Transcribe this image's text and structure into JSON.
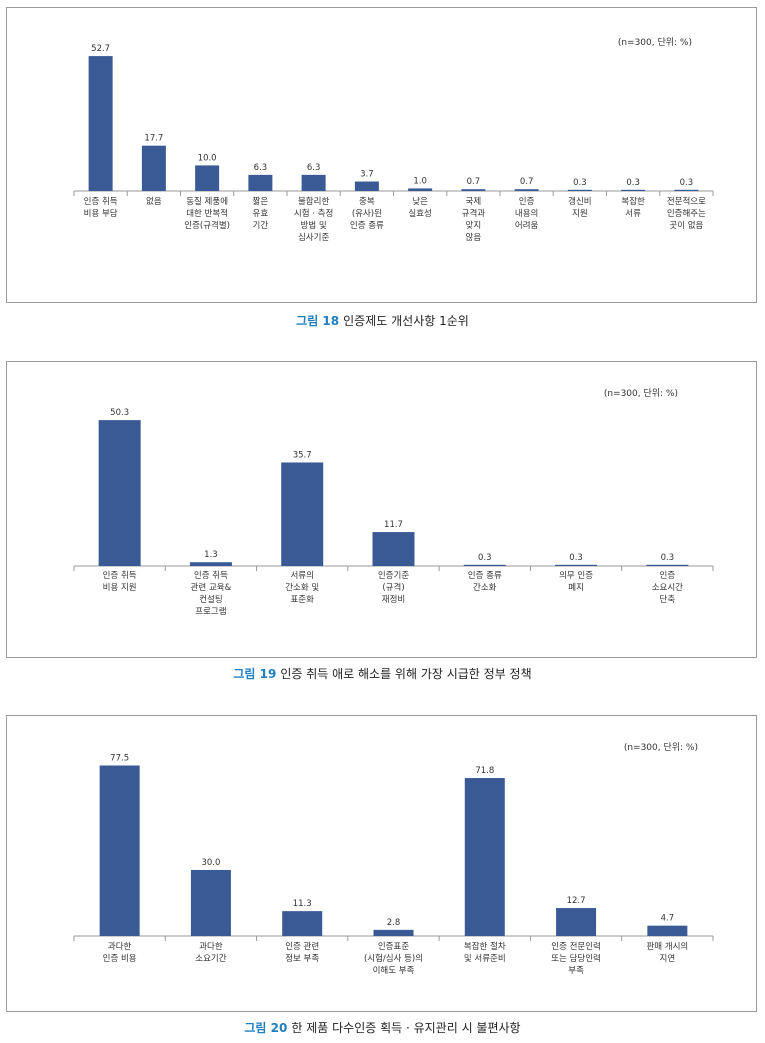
{
  "accent_color": "#1f7fc0",
  "bar_color": "#3a5a96",
  "chart_data": [
    {
      "type": "bar",
      "note": "(n=300, 단위: %)",
      "caption_num": "그림 18",
      "caption_text": "인증제도 개선사항 1순위",
      "categories": [
        [
          "인증 취득",
          "비용 부담"
        ],
        [
          "없음"
        ],
        [
          "동질 제품에",
          "대한 반복적",
          "인증(규격별)"
        ],
        [
          "짧은",
          "유효",
          "기간"
        ],
        [
          "불합리한",
          "시험 · 측정",
          "방법 및",
          "심사기준"
        ],
        [
          "중복",
          "(유사)된",
          "인증 종류"
        ],
        [
          "낮은",
          "실효성"
        ],
        [
          "국제",
          "규격과",
          "맞지",
          "않음"
        ],
        [
          "인증",
          "내용의",
          "어려움"
        ],
        [
          "갱신비",
          "지원"
        ],
        [
          "복잡한",
          "서류"
        ],
        [
          "전문적으로",
          "인증해주는",
          "곳이 없음"
        ]
      ],
      "labels": [
        "52.7",
        "17.7",
        "10.0",
        "6.3",
        "6.3",
        "3.7",
        "1.0",
        "0.7",
        "0.7",
        "0.3",
        "0.3",
        "0.3"
      ],
      "values": [
        52.7,
        17.7,
        10.0,
        6.3,
        6.3,
        3.7,
        1.0,
        0.7,
        0.7,
        0.3,
        0.3,
        0.3
      ]
    },
    {
      "type": "bar",
      "note": "(n=300, 단위: %)",
      "caption_num": "그림 19",
      "caption_text": "인증 취득 애로 해소를 위해 가장 시급한 정부 정책",
      "categories": [
        [
          "인증 취득",
          "비용 지원"
        ],
        [
          "인증 취득",
          "관련 교육&",
          "컨설팅",
          "프로그램"
        ],
        [
          "서류의",
          "간소화 및",
          "표준화"
        ],
        [
          "인증기준",
          "(규격)",
          "재정비"
        ],
        [
          "인증 종류",
          "간소화"
        ],
        [
          "의무 인증",
          "폐지"
        ],
        [
          "인증",
          "소요시간",
          "단축"
        ]
      ],
      "labels": [
        "50.3",
        "1.3",
        "35.7",
        "11.7",
        "0.3",
        "0.3",
        "0.3"
      ],
      "values": [
        50.3,
        1.3,
        35.7,
        11.7,
        0.3,
        0.3,
        0.3
      ]
    },
    {
      "type": "bar",
      "note": "(n=300, 단위: %)",
      "caption_num": "그림 20",
      "caption_text": "한 제품 다수인증 획득 · 유지관리 시 불편사항",
      "categories": [
        [
          "과다한",
          "인증 비용"
        ],
        [
          "과다한",
          "소요기간"
        ],
        [
          "인증 관련",
          "정보 부족"
        ],
        [
          "인증표준",
          "(시험/심사 등)의",
          "이해도 부족"
        ],
        [
          "복잡한 절차",
          "및 서류준비"
        ],
        [
          "인증 전문인력",
          "또는 담당인력",
          "부족"
        ],
        [
          "판매 개시의",
          "지연"
        ]
      ],
      "labels": [
        "77.5",
        "30.0",
        "11.3",
        "2.8",
        "71.8",
        "12.7",
        "4.7"
      ],
      "values": [
        77.5,
        30.0,
        11.3,
        2.8,
        71.8,
        12.7,
        4.7
      ]
    }
  ]
}
